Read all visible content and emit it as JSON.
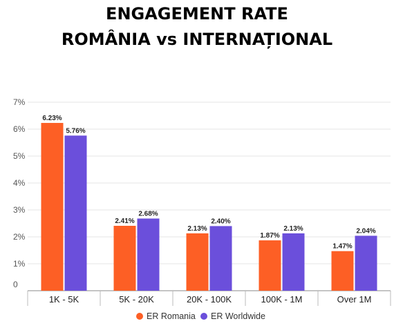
{
  "chart_data": {
    "type": "bar",
    "title_lines": [
      "ENGAGEMENT RATE",
      "ROMÂNIA vs INTERNAȚIONAL"
    ],
    "categories": [
      "1K - 5K",
      "5K - 20K",
      "20K - 100K",
      "100K - 1M",
      "Over 1M"
    ],
    "series": [
      {
        "name": "ER Romania",
        "color": "#fd5f25",
        "values": [
          6.23,
          2.41,
          2.13,
          1.87,
          1.47
        ],
        "labels": [
          "6.23%",
          "2.41%",
          "2.13%",
          "1.87%",
          "1.47%"
        ]
      },
      {
        "name": "ER Worldwide",
        "color": "#6b4fdb",
        "values": [
          5.76,
          2.68,
          2.4,
          2.13,
          2.04
        ],
        "labels": [
          "5.76%",
          "2.68%",
          "2.40%",
          "2.13%",
          "2.04%"
        ]
      }
    ],
    "y_ticks": [
      "0",
      "1%",
      "2%",
      "3%",
      "4%",
      "5%",
      "6%",
      "7%"
    ],
    "ylim": [
      0,
      7
    ],
    "grid": true,
    "legend_position": "bottom-center"
  }
}
